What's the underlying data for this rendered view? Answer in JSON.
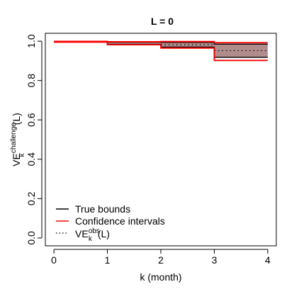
{
  "chart_data": {
    "type": "step",
    "title": "L =  0",
    "xlabel": "k (month)",
    "ylabel": {
      "base": "VE",
      "superscript": "challenge",
      "subscript": "k",
      "suffix": "(L)"
    },
    "xlim": [
      -0.16,
      4.16
    ],
    "ylim": [
      -0.04,
      1.04
    ],
    "xticks": [
      0,
      1,
      2,
      3,
      4
    ],
    "yticks": [
      0.0,
      0.2,
      0.4,
      0.6,
      0.8,
      1.0
    ],
    "xtick_labels": [
      "0",
      "1",
      "2",
      "3",
      "4"
    ],
    "ytick_labels": [
      "0.0",
      "0.2",
      "0.4",
      "0.6",
      "0.8",
      "1.0"
    ],
    "grid": false,
    "legend_position": "bottom-left",
    "shade_color": "#b08c8c",
    "true_bounds": {
      "color": "#000000",
      "intervals": [
        {
          "x0": 0,
          "x1": 1,
          "lower": 0.997,
          "upper": 0.997
        },
        {
          "x0": 1,
          "x1": 2,
          "lower": 0.984,
          "upper": 0.995
        },
        {
          "x0": 2,
          "x1": 3,
          "lower": 0.97,
          "upper": 0.994
        },
        {
          "x0": 3,
          "x1": 4,
          "lower": 0.918,
          "upper": 0.985
        }
      ]
    },
    "confidence_intervals": {
      "color": "#ff0000",
      "intervals": [
        {
          "x0": 0,
          "x1": 1,
          "lower": 0.995,
          "upper": 0.999
        },
        {
          "x0": 1,
          "x1": 2,
          "lower": 0.982,
          "upper": 0.997
        },
        {
          "x0": 2,
          "x1": 3,
          "lower": 0.965,
          "upper": 0.998
        },
        {
          "x0": 3,
          "x1": 4,
          "lower": 0.902,
          "upper": 0.992
        }
      ]
    },
    "observed": {
      "style": "dotted",
      "color": "#000000",
      "intervals": [
        {
          "x0": 2,
          "x1": 3,
          "value": 0.982
        },
        {
          "x0": 3,
          "x1": 4,
          "value": 0.952
        }
      ]
    },
    "legend": [
      {
        "label": "True bounds",
        "color": "#000000",
        "style": "solid"
      },
      {
        "label": "Confidence intervals",
        "color": "#ff0000",
        "style": "solid"
      },
      {
        "label": {
          "base": "VE",
          "superscript": "obs",
          "subscript": "k",
          "suffix": "(L)"
        },
        "color": "#000000",
        "style": "dotted"
      }
    ]
  }
}
